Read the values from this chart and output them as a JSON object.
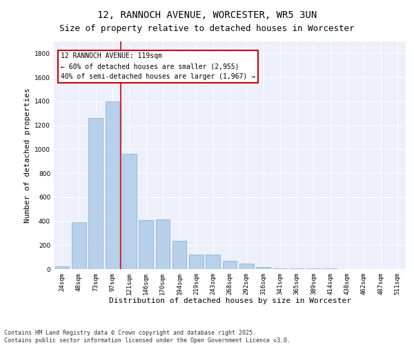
{
  "title": "12, RANNOCH AVENUE, WORCESTER, WR5 3UN",
  "subtitle": "Size of property relative to detached houses in Worcester",
  "xlabel": "Distribution of detached houses by size in Worcester",
  "ylabel": "Number of detached properties",
  "categories": [
    "24sqm",
    "48sqm",
    "73sqm",
    "97sqm",
    "121sqm",
    "146sqm",
    "170sqm",
    "194sqm",
    "219sqm",
    "243sqm",
    "268sqm",
    "292sqm",
    "316sqm",
    "341sqm",
    "365sqm",
    "389sqm",
    "414sqm",
    "438sqm",
    "462sqm",
    "487sqm",
    "511sqm"
  ],
  "values": [
    22,
    390,
    1260,
    1400,
    960,
    410,
    415,
    235,
    120,
    120,
    68,
    45,
    18,
    5,
    5,
    3,
    3,
    2,
    1,
    1,
    0
  ],
  "bar_color": "#b8d0ea",
  "bar_edge_color": "#7aabdb",
  "vline_index": 4,
  "vline_color": "#cc0000",
  "annotation_title": "12 RANNOCH AVENUE: 119sqm",
  "annotation_line1": "← 60% of detached houses are smaller (2,955)",
  "annotation_line2": "40% of semi-detached houses are larger (1,967) →",
  "annotation_box_color": "#cc0000",
  "ylim": [
    0,
    1900
  ],
  "yticks": [
    0,
    200,
    400,
    600,
    800,
    1000,
    1200,
    1400,
    1600,
    1800
  ],
  "bg_color": "#edf0fa",
  "footer_line1": "Contains HM Land Registry data © Crown copyright and database right 2025.",
  "footer_line2": "Contains public sector information licensed under the Open Government Licence v3.0.",
  "title_fontsize": 10,
  "subtitle_fontsize": 9,
  "axis_label_fontsize": 8,
  "tick_fontsize": 6.5,
  "footer_fontsize": 6,
  "annotation_fontsize": 7
}
